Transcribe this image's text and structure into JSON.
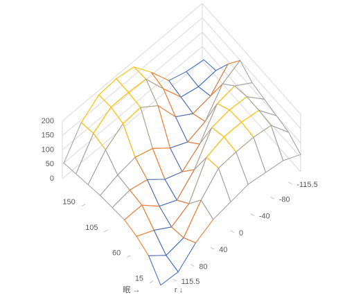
{
  "chart_data": {
    "type": "surface",
    "x_label": "眠 →",
    "y_label": "r ↓",
    "x": [
      192,
      168,
      144,
      120,
      96,
      72,
      48,
      24,
      0
    ],
    "y": [
      140,
      105,
      70,
      35,
      0,
      -35,
      -70,
      -105,
      -140
    ],
    "z": [
      [
        60,
        150,
        195,
        200,
        190,
        120,
        40,
        20,
        10
      ],
      [
        70,
        160,
        200,
        200,
        195,
        110,
        30,
        15,
        20
      ],
      [
        80,
        150,
        190,
        195,
        150,
        60,
        20,
        30,
        90
      ],
      [
        90,
        110,
        120,
        100,
        50,
        20,
        40,
        120,
        150
      ],
      [
        95,
        105,
        90,
        40,
        15,
        60,
        150,
        160,
        120
      ],
      [
        100,
        100,
        45,
        15,
        70,
        165,
        175,
        170,
        110
      ],
      [
        90,
        60,
        20,
        50,
        160,
        180,
        180,
        170,
        100
      ],
      [
        70,
        20,
        30,
        110,
        170,
        175,
        175,
        165,
        90
      ],
      [
        15,
        10,
        60,
        90,
        100,
        110,
        100,
        90,
        60
      ]
    ],
    "xlim": [
      195,
      0
    ],
    "xticks": [
      150,
      105,
      60,
      15
    ],
    "ylim": [
      140,
      -140
    ],
    "yticks": [
      115.5,
      80,
      40,
      0,
      -40,
      -80,
      -115.5
    ],
    "zlim": [
      0,
      200
    ],
    "zticks": [
      0,
      50,
      100,
      150,
      200
    ],
    "band_colors": [
      "#4472c4",
      "#ed7d31",
      "#a5a5a5",
      "#ffc000"
    ]
  }
}
